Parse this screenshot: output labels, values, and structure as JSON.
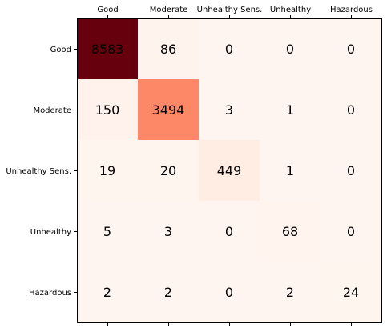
{
  "chart_data": {
    "type": "heatmap",
    "title": "",
    "xlabel": "",
    "ylabel": "",
    "x_categories": [
      "Good",
      "Moderate",
      "Unhealthy Sens.",
      "Unhealthy",
      "Hazardous"
    ],
    "y_categories": [
      "Good",
      "Moderate",
      "Unhealthy Sens.",
      "Unhealthy",
      "Hazardous"
    ],
    "x_ticks_position": "top",
    "values": [
      [
        8583,
        86,
        0,
        0,
        0
      ],
      [
        150,
        3494,
        3,
        1,
        0
      ],
      [
        19,
        20,
        449,
        1,
        0
      ],
      [
        5,
        3,
        0,
        68,
        0
      ],
      [
        2,
        2,
        0,
        2,
        24
      ]
    ],
    "colormap": "Reds",
    "color_min": "#fff5f0",
    "color_max": "#67000d",
    "grid": false,
    "legend": "none"
  }
}
